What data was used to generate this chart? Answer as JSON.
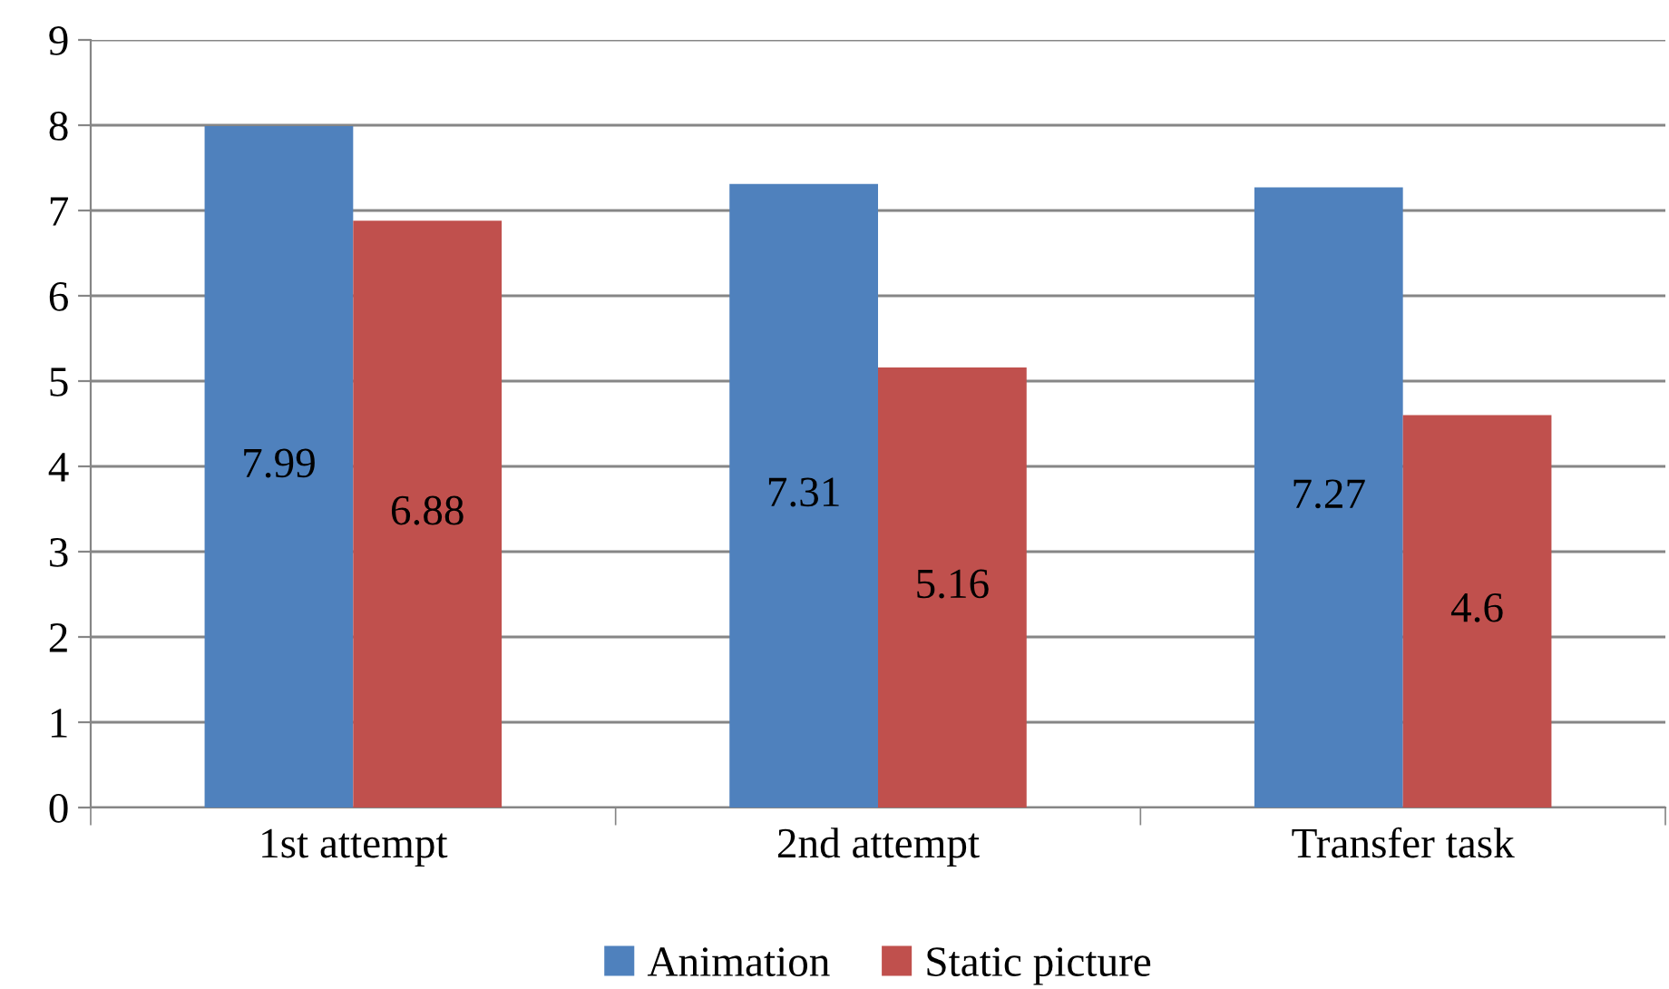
{
  "chart_data": {
    "type": "bar",
    "categories": [
      "1st attempt",
      "2nd attempt",
      "Transfer task"
    ],
    "series": [
      {
        "name": "Animation",
        "color": "#4f81bd",
        "values": [
          7.99,
          7.31,
          7.27
        ]
      },
      {
        "name": "Static picture",
        "color": "#c0504d",
        "values": [
          6.88,
          5.16,
          4.6
        ]
      }
    ],
    "ylim": [
      0,
      9
    ],
    "yticks": [
      0,
      1,
      2,
      3,
      4,
      5,
      6,
      7,
      8,
      9
    ],
    "grid": "y",
    "legend": "bottom",
    "data_labels": true
  }
}
